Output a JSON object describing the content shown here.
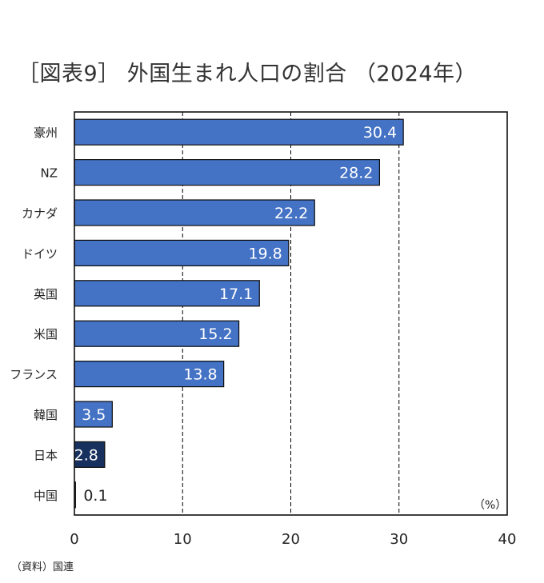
{
  "title": "［図表9］ 外国生まれ人口の割合 （2024年）",
  "source": "（資料）国連",
  "unit_label": "（%）",
  "colors": {
    "bar": "#4472c4",
    "bar_highlight": "#17305e",
    "bar_outline": "#0d0d0d",
    "grid": "#000000",
    "value_label_inside": "#ffffff",
    "value_label_outside": "#222222"
  },
  "chart_data": {
    "type": "bar",
    "orientation": "horizontal",
    "title": "［図表9］ 外国生まれ人口の割合 （2024年）",
    "xlabel": "（%）",
    "ylabel": "",
    "xlim": [
      0,
      40
    ],
    "xticks": [
      0,
      10,
      20,
      30,
      40
    ],
    "grid": true,
    "categories": [
      "豪州",
      "NZ",
      "カナダ",
      "ドイツ",
      "英国",
      "米国",
      "フランス",
      "韓国",
      "日本",
      "中国"
    ],
    "values": [
      30.4,
      28.2,
      22.2,
      19.8,
      17.1,
      15.2,
      13.8,
      3.5,
      2.8,
      0.1
    ],
    "highlight": [
      "日本"
    ],
    "value_labels": [
      "30.4",
      "28.2",
      "22.2",
      "19.8",
      "17.1",
      "15.2",
      "13.8",
      "3.5",
      "2.8",
      "0.1"
    ]
  }
}
